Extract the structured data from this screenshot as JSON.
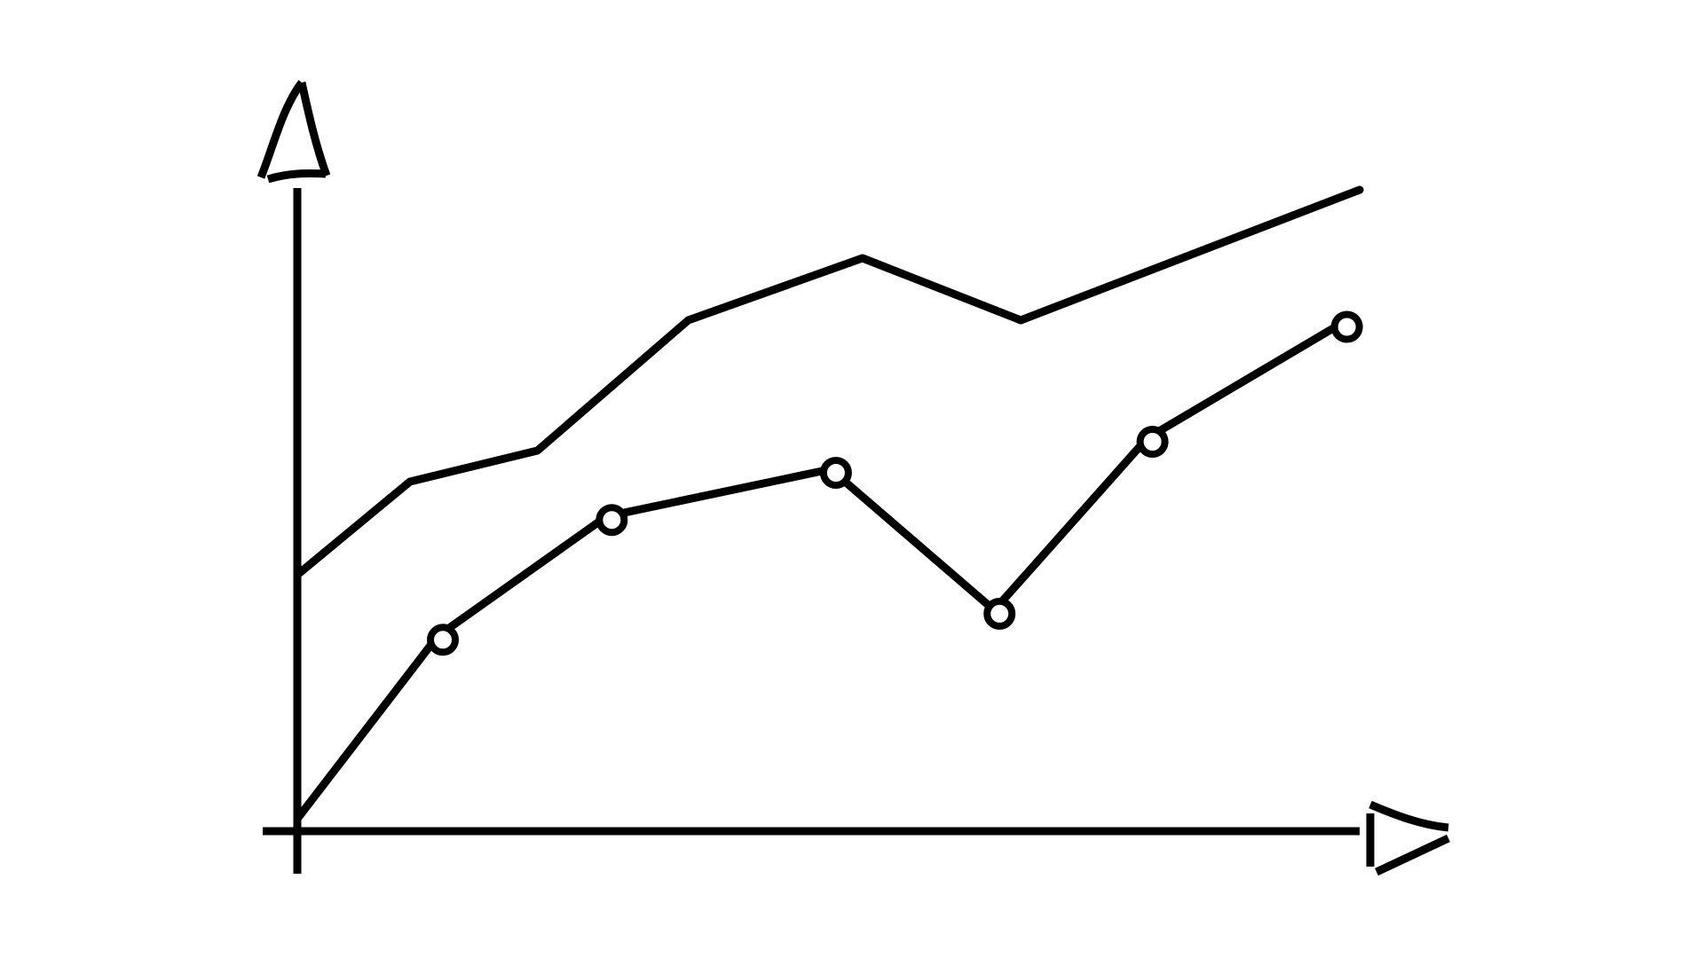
{
  "chart_data": {
    "type": "line",
    "xlim": [
      0,
      100
    ],
    "ylim": [
      0,
      105
    ],
    "series": [
      {
        "color": "#000000",
        "markers": false,
        "x": [
          0,
          10.6,
          22.6,
          36.8,
          53.2,
          68.1,
          100
        ],
        "values": [
          41,
          56,
          61,
          82,
          92,
          82,
          103
        ]
      },
      {
        "color": "#000000",
        "markers": true,
        "x": [
          0,
          13.2,
          29.1,
          50.2,
          65.6,
          80,
          98.3
        ],
        "values": [
          1.7,
          31.1,
          50.4,
          58,
          35.3,
          63,
          81.5
        ]
      }
    ]
  }
}
